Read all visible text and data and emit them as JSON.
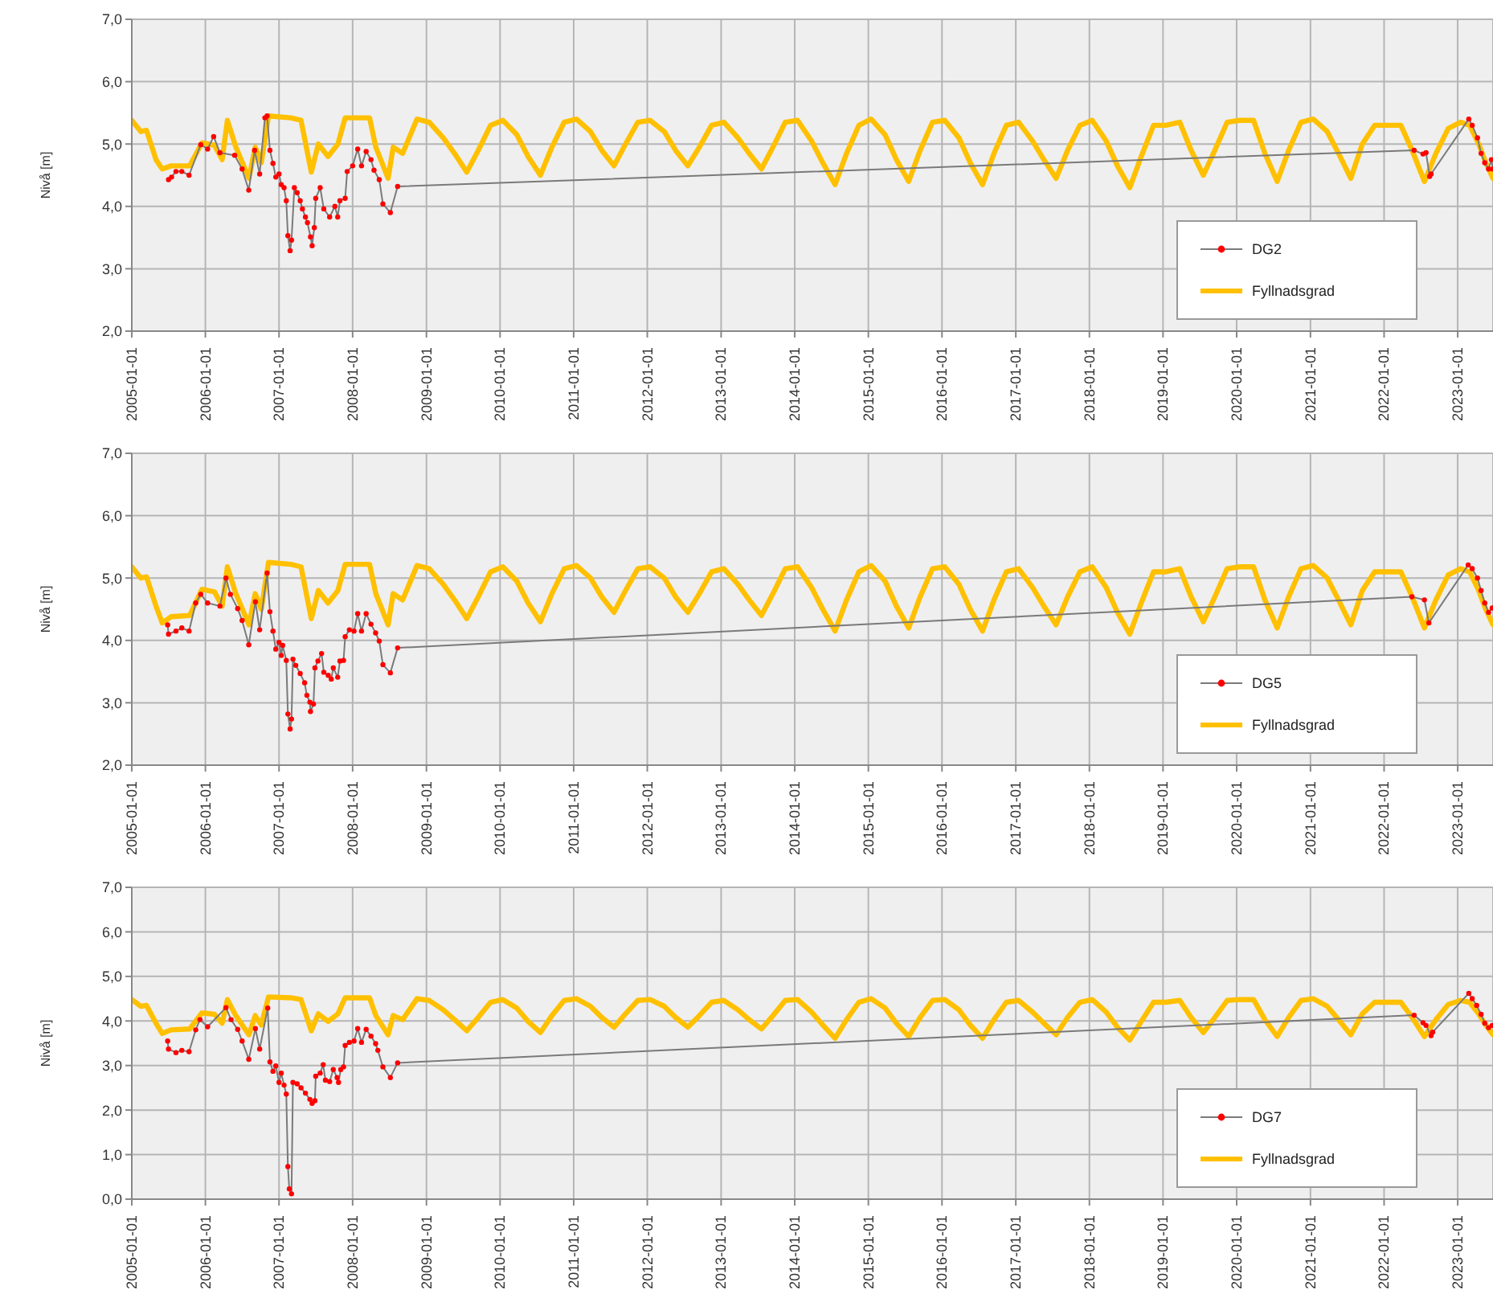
{
  "chart_data": [
    {
      "type": "line",
      "ylabel": "Nivå [m]",
      "xlim": [
        "2005-01-01",
        "2023-06-25"
      ],
      "ylim": [
        2,
        7
      ],
      "yticks": [
        {
          "value": 2,
          "label": "2,0"
        },
        {
          "value": 3,
          "label": "3,0"
        },
        {
          "value": 4,
          "label": "4,0"
        },
        {
          "value": 5,
          "label": "5,0"
        },
        {
          "value": 6,
          "label": "6,0"
        },
        {
          "value": 7,
          "label": "7,0"
        }
      ],
      "xticks": [
        {
          "value": "2005-01-01",
          "label": "2005-01-01"
        },
        {
          "value": "2006-01-01",
          "label": "2006-01-01"
        },
        {
          "value": "2007-01-01",
          "label": "2007-01-01"
        },
        {
          "value": "2008-01-01",
          "label": "2008-01-01"
        },
        {
          "value": "2009-01-01",
          "label": "2009-01-01"
        },
        {
          "value": "2010-01-01",
          "label": "2010-01-01"
        },
        {
          "value": "2011-01-01",
          "label": "2011-01-01"
        },
        {
          "value": "2012-01-01",
          "label": "2012-01-01"
        },
        {
          "value": "2013-01-01",
          "label": "2013-01-01"
        },
        {
          "value": "2014-01-01",
          "label": "2014-01-01"
        },
        {
          "value": "2015-01-01",
          "label": "2015-01-01"
        },
        {
          "value": "2016-01-01",
          "label": "2016-01-01"
        },
        {
          "value": "2017-01-01",
          "label": "2017-01-01"
        },
        {
          "value": "2018-01-01",
          "label": "2018-01-01"
        },
        {
          "value": "2019-01-01",
          "label": "2019-01-01"
        },
        {
          "value": "2020-01-01",
          "label": "2020-01-01"
        },
        {
          "value": "2021-01-01",
          "label": "2021-01-01"
        },
        {
          "value": "2022-01-01",
          "label": "2022-01-01"
        },
        {
          "value": "2023-01-01",
          "label": "2023-01-01"
        }
      ],
      "grid": true,
      "legend": "bottom right",
      "series": [
        {
          "name": "DG2",
          "color": "#ff0000",
          "marker": "circle",
          "x": [
            "2005-07-02",
            "2005-07-17",
            "2005-08-08",
            "2005-09-06",
            "2005-10-12",
            "2005-12-09",
            "2006-01-12",
            "2006-02-11",
            "2006-03-14",
            "2006-05-26",
            "2006-07-02",
            "2006-08-04",
            "2006-09-02",
            "2006-09-27",
            "2006-10-23",
            "2006-11-03",
            "2006-11-17",
            "2006-12-02",
            "2006-12-16",
            "2007-01-01",
            "2007-01-12",
            "2007-01-26",
            "2007-02-06",
            "2007-02-14",
            "2007-02-25",
            "2007-03-04",
            "2007-03-18",
            "2007-04-01",
            "2007-04-16",
            "2007-04-27",
            "2007-05-12",
            "2007-05-22",
            "2007-06-06",
            "2007-06-14",
            "2007-06-25",
            "2007-07-02",
            "2007-07-24",
            "2007-08-11",
            "2007-09-09",
            "2007-10-05",
            "2007-10-19",
            "2007-10-30",
            "2007-11-25",
            "2007-12-05",
            "2008-01-01",
            "2008-01-26",
            "2008-02-14",
            "2008-03-08",
            "2008-04-01",
            "2008-04-16",
            "2008-05-12",
            "2008-05-30",
            "2008-07-06",
            "2008-08-11",
            "2022-05-30",
            "2022-07-13",
            "2022-07-28",
            "2022-08-15",
            "2022-08-22",
            "2023-02-25",
            "2023-03-14",
            "2023-04-09",
            "2023-04-27",
            "2023-05-15",
            "2023-06-03",
            "2023-06-17",
            "2023-06-24"
          ],
          "values": [
            4.43,
            4.47,
            4.56,
            4.56,
            4.5,
            4.99,
            4.92,
            5.12,
            4.86,
            4.82,
            4.6,
            4.26,
            4.9,
            4.52,
            5.42,
            5.45,
            4.9,
            4.69,
            4.47,
            4.52,
            4.35,
            4.3,
            4.09,
            3.53,
            3.29,
            3.46,
            4.3,
            4.22,
            4.09,
            3.96,
            3.83,
            3.74,
            3.51,
            3.37,
            3.66,
            4.13,
            4.3,
            3.96,
            3.83,
            4.0,
            3.83,
            4.09,
            4.13,
            4.56,
            4.65,
            4.92,
            4.65,
            4.88,
            4.75,
            4.58,
            4.43,
            4.04,
            3.9,
            4.32,
            4.9,
            4.84,
            4.86,
            4.48,
            4.52,
            5.4,
            5.3,
            5.1,
            4.85,
            4.7,
            4.6,
            4.75,
            4.6
          ]
        },
        {
          "name": "Fyllnadsgrad",
          "color": "#ffc000",
          "marker": "none",
          "x": [
            "2005-01-01",
            "2005-02-15",
            "2005-03-15",
            "2005-05-01",
            "2005-06-01",
            "2005-07-15",
            "2005-10-15",
            "2005-12-15",
            "2006-02-15",
            "2006-03-25",
            "2006-04-20",
            "2006-06-01",
            "2006-08-05",
            "2006-09-05",
            "2006-10-05",
            "2006-11-10",
            "2007-03-01",
            "2007-04-20",
            "2007-06-10",
            "2007-07-15",
            "2007-09-01",
            "2007-10-20",
            "2007-11-25",
            "2008-03-25",
            "2008-04-25",
            "2008-06-25",
            "2008-07-20",
            "2008-09-05",
            "2008-11-15",
            "2009-01-15",
            "2009-03-25",
            "2009-05-20",
            "2009-07-20",
            "2009-09-15",
            "2009-11-15",
            "2010-01-15",
            "2010-03-25",
            "2010-05-20",
            "2010-07-20",
            "2010-09-15",
            "2010-11-15",
            "2011-01-15",
            "2011-03-25",
            "2011-05-20",
            "2011-07-20",
            "2011-09-15",
            "2011-11-15",
            "2012-01-15",
            "2012-03-25",
            "2012-05-20",
            "2012-07-20",
            "2012-09-15",
            "2012-11-15",
            "2013-01-15",
            "2013-03-25",
            "2013-05-20",
            "2013-07-20",
            "2013-09-15",
            "2013-11-15",
            "2014-01-15",
            "2014-03-25",
            "2014-05-20",
            "2014-07-20",
            "2014-09-15",
            "2014-11-15",
            "2015-01-15",
            "2015-03-25",
            "2015-05-20",
            "2015-07-20",
            "2015-09-15",
            "2015-11-15",
            "2016-01-15",
            "2016-03-25",
            "2016-05-20",
            "2016-07-20",
            "2016-09-15",
            "2016-11-15",
            "2017-01-15",
            "2017-03-25",
            "2017-05-20",
            "2017-07-20",
            "2017-09-15",
            "2017-11-15",
            "2018-01-15",
            "2018-03-25",
            "2018-05-20",
            "2018-07-20",
            "2018-09-15",
            "2018-11-15",
            "2019-01-15",
            "2019-03-25",
            "2019-05-20",
            "2019-07-20",
            "2019-09-15",
            "2019-11-15",
            "2020-01-15",
            "2020-03-25",
            "2020-05-20",
            "2020-07-20",
            "2020-09-15",
            "2020-11-15",
            "2021-01-15",
            "2021-03-25",
            "2021-05-20",
            "2021-07-20",
            "2021-09-15",
            "2021-11-15",
            "2022-01-15",
            "2022-03-25",
            "2022-05-20",
            "2022-07-20",
            "2022-09-15",
            "2022-11-15",
            "2023-01-15",
            "2023-03-01",
            "2023-04-15",
            "2023-05-20",
            "2023-06-25"
          ],
          "values": [
            5.38,
            5.2,
            5.22,
            4.75,
            4.6,
            4.65,
            4.65,
            5.02,
            4.98,
            4.75,
            5.38,
            4.95,
            4.45,
            4.95,
            4.7,
            5.45,
            5.42,
            5.38,
            4.55,
            5.0,
            4.8,
            5.0,
            5.42,
            5.42,
            4.95,
            4.45,
            4.95,
            4.85,
            5.4,
            5.35,
            5.1,
            4.85,
            4.55,
            4.9,
            5.3,
            5.38,
            5.15,
            4.8,
            4.5,
            4.95,
            5.35,
            5.4,
            5.2,
            4.9,
            4.65,
            5.0,
            5.35,
            5.38,
            5.2,
            4.9,
            4.65,
            4.95,
            5.3,
            5.35,
            5.1,
            4.85,
            4.6,
            4.95,
            5.35,
            5.38,
            5.05,
            4.7,
            4.35,
            4.85,
            5.3,
            5.4,
            5.15,
            4.75,
            4.4,
            4.9,
            5.35,
            5.38,
            5.1,
            4.7,
            4.35,
            4.85,
            5.3,
            5.35,
            5.05,
            4.75,
            4.45,
            4.9,
            5.3,
            5.38,
            5.05,
            4.65,
            4.3,
            4.8,
            5.3,
            5.3,
            5.35,
            4.9,
            4.5,
            4.9,
            5.35,
            5.38,
            5.38,
            4.85,
            4.4,
            4.9,
            5.35,
            5.4,
            5.2,
            4.85,
            4.45,
            5.0,
            5.3,
            5.3,
            5.3,
            4.9,
            4.4,
            4.85,
            5.25,
            5.35,
            5.3,
            5.0,
            4.7,
            4.45
          ]
        }
      ]
    },
    {
      "type": "line",
      "ylabel": "Nivå [m]",
      "xlim": [
        "2005-01-01",
        "2023-06-25"
      ],
      "ylim": [
        2,
        7
      ],
      "yticks": [
        {
          "value": 2,
          "label": "2,0"
        },
        {
          "value": 3,
          "label": "3,0"
        },
        {
          "value": 4,
          "label": "4,0"
        },
        {
          "value": 5,
          "label": "5,0"
        },
        {
          "value": 6,
          "label": "6,0"
        },
        {
          "value": 7,
          "label": "7,0"
        }
      ],
      "xticks": [
        {
          "value": "2005-01-01",
          "label": "2005-01-01"
        },
        {
          "value": "2006-01-01",
          "label": "2006-01-01"
        },
        {
          "value": "2007-01-01",
          "label": "2007-01-01"
        },
        {
          "value": "2008-01-01",
          "label": "2008-01-01"
        },
        {
          "value": "2009-01-01",
          "label": "2009-01-01"
        },
        {
          "value": "2010-01-01",
          "label": "2010-01-01"
        },
        {
          "value": "2011-01-01",
          "label": "2011-01-01"
        },
        {
          "value": "2012-01-01",
          "label": "2012-01-01"
        },
        {
          "value": "2013-01-01",
          "label": "2013-01-01"
        },
        {
          "value": "2014-01-01",
          "label": "2014-01-01"
        },
        {
          "value": "2015-01-01",
          "label": "2015-01-01"
        },
        {
          "value": "2016-01-01",
          "label": "2016-01-01"
        },
        {
          "value": "2017-01-01",
          "label": "2017-01-01"
        },
        {
          "value": "2018-01-01",
          "label": "2018-01-01"
        },
        {
          "value": "2019-01-01",
          "label": "2019-01-01"
        },
        {
          "value": "2020-01-01",
          "label": "2020-01-01"
        },
        {
          "value": "2021-01-01",
          "label": "2021-01-01"
        },
        {
          "value": "2022-01-01",
          "label": "2022-01-01"
        },
        {
          "value": "2023-01-01",
          "label": "2023-01-01"
        }
      ],
      "grid": true,
      "legend": "bottom right",
      "series": [
        {
          "name": "DG5",
          "color": "#ff0000",
          "marker": "circle",
          "x": [
            "2005-06-28",
            "2005-07-02",
            "2005-08-08",
            "2005-09-06",
            "2005-10-12",
            "2005-11-14",
            "2005-12-09",
            "2006-01-12",
            "2006-03-14",
            "2006-04-13",
            "2006-05-05",
            "2006-06-10",
            "2006-07-02",
            "2006-08-04",
            "2006-09-06",
            "2006-09-27",
            "2006-11-03",
            "2006-11-17",
            "2006-12-02",
            "2006-12-16",
            "2007-01-01",
            "2007-01-12",
            "2007-01-19",
            "2007-02-06",
            "2007-02-14",
            "2007-02-25",
            "2007-03-04",
            "2007-03-11",
            "2007-03-25",
            "2007-04-16",
            "2007-05-08",
            "2007-05-19",
            "2007-06-03",
            "2007-06-06",
            "2007-06-21",
            "2007-06-28",
            "2007-07-13",
            "2007-07-31",
            "2007-08-11",
            "2007-09-02",
            "2007-09-17",
            "2007-09-27",
            "2007-10-19",
            "2007-10-30",
            "2007-11-17",
            "2007-11-25",
            "2007-12-16",
            "2008-01-08",
            "2008-01-26",
            "2008-02-14",
            "2008-03-08",
            "2008-04-01",
            "2008-04-24",
            "2008-05-12",
            "2008-05-30",
            "2008-07-06",
            "2008-08-11",
            "2022-05-19",
            "2022-07-20",
            "2022-08-11",
            "2023-02-22",
            "2023-03-14",
            "2023-04-09",
            "2023-04-27",
            "2023-05-15",
            "2023-06-03",
            "2023-06-21"
          ],
          "values": [
            4.25,
            4.1,
            4.15,
            4.2,
            4.15,
            4.6,
            4.74,
            4.6,
            4.55,
            5.0,
            4.74,
            4.51,
            4.32,
            3.93,
            4.62,
            4.17,
            5.08,
            4.46,
            4.15,
            3.86,
            3.97,
            3.76,
            3.92,
            3.68,
            2.82,
            2.58,
            2.74,
            3.7,
            3.6,
            3.47,
            3.32,
            3.12,
            3.01,
            2.86,
            2.98,
            3.56,
            3.67,
            3.79,
            3.49,
            3.44,
            3.38,
            3.56,
            3.41,
            3.67,
            3.68,
            4.06,
            4.17,
            4.15,
            4.43,
            4.15,
            4.43,
            4.26,
            4.12,
            3.99,
            3.61,
            3.48,
            3.88,
            4.7,
            4.65,
            4.28,
            5.21,
            5.15,
            5.0,
            4.8,
            4.6,
            4.45,
            4.52
          ]
        },
        {
          "name": "Fyllnadsgrad",
          "color": "#ffc000",
          "marker": "none",
          "x": [
            "2005-01-01",
            "2005-02-15",
            "2005-03-15",
            "2005-05-01",
            "2005-06-01",
            "2005-07-15",
            "2005-10-15",
            "2005-12-15",
            "2006-02-15",
            "2006-03-25",
            "2006-04-20",
            "2006-06-01",
            "2006-08-05",
            "2006-09-05",
            "2006-10-05",
            "2006-11-10",
            "2007-03-01",
            "2007-04-20",
            "2007-06-10",
            "2007-07-15",
            "2007-09-01",
            "2007-10-20",
            "2007-11-25",
            "2008-03-25",
            "2008-04-25",
            "2008-06-25",
            "2008-07-20",
            "2008-09-05",
            "2008-11-15",
            "2009-01-15",
            "2009-03-25",
            "2009-05-20",
            "2009-07-20",
            "2009-09-15",
            "2009-11-15",
            "2010-01-15",
            "2010-03-25",
            "2010-05-20",
            "2010-07-20",
            "2010-09-15",
            "2010-11-15",
            "2011-01-15",
            "2011-03-25",
            "2011-05-20",
            "2011-07-20",
            "2011-09-15",
            "2011-11-15",
            "2012-01-15",
            "2012-03-25",
            "2012-05-20",
            "2012-07-20",
            "2012-09-15",
            "2012-11-15",
            "2013-01-15",
            "2013-03-25",
            "2013-05-20",
            "2013-07-20",
            "2013-09-15",
            "2013-11-15",
            "2014-01-15",
            "2014-03-25",
            "2014-05-20",
            "2014-07-20",
            "2014-09-15",
            "2014-11-15",
            "2015-01-15",
            "2015-03-25",
            "2015-05-20",
            "2015-07-20",
            "2015-09-15",
            "2015-11-15",
            "2016-01-15",
            "2016-03-25",
            "2016-05-20",
            "2016-07-20",
            "2016-09-15",
            "2016-11-15",
            "2017-01-15",
            "2017-03-25",
            "2017-05-20",
            "2017-07-20",
            "2017-09-15",
            "2017-11-15",
            "2018-01-15",
            "2018-03-25",
            "2018-05-20",
            "2018-07-20",
            "2018-09-15",
            "2018-11-15",
            "2019-01-15",
            "2019-03-25",
            "2019-05-20",
            "2019-07-20",
            "2019-09-15",
            "2019-11-15",
            "2020-01-15",
            "2020-03-25",
            "2020-05-20",
            "2020-07-20",
            "2020-09-15",
            "2020-11-15",
            "2021-01-15",
            "2021-03-25",
            "2021-05-20",
            "2021-07-20",
            "2021-09-15",
            "2021-11-15",
            "2022-01-15",
            "2022-03-25",
            "2022-05-20",
            "2022-07-20",
            "2022-09-15",
            "2022-11-15",
            "2023-01-15",
            "2023-03-01",
            "2023-04-15",
            "2023-05-20",
            "2023-06-25"
          ],
          "values": [
            5.18,
            5.0,
            5.02,
            4.55,
            4.28,
            4.38,
            4.4,
            4.82,
            4.78,
            4.55,
            5.18,
            4.75,
            4.25,
            4.75,
            4.5,
            5.25,
            5.22,
            5.18,
            4.35,
            4.8,
            4.6,
            4.8,
            5.22,
            5.22,
            4.75,
            4.25,
            4.75,
            4.65,
            5.2,
            5.15,
            4.9,
            4.65,
            4.35,
            4.7,
            5.1,
            5.18,
            4.95,
            4.6,
            4.3,
            4.75,
            5.15,
            5.2,
            5.0,
            4.7,
            4.45,
            4.8,
            5.15,
            5.18,
            5.0,
            4.7,
            4.45,
            4.75,
            5.1,
            5.15,
            4.9,
            4.65,
            4.4,
            4.75,
            5.15,
            5.18,
            4.85,
            4.5,
            4.15,
            4.65,
            5.1,
            5.2,
            4.95,
            4.55,
            4.2,
            4.7,
            5.15,
            5.18,
            4.9,
            4.5,
            4.15,
            4.65,
            5.1,
            5.15,
            4.85,
            4.55,
            4.25,
            4.7,
            5.1,
            5.18,
            4.85,
            4.45,
            4.1,
            4.6,
            5.1,
            5.1,
            5.15,
            4.7,
            4.3,
            4.7,
            5.15,
            5.18,
            5.18,
            4.65,
            4.2,
            4.7,
            5.15,
            5.2,
            5.0,
            4.65,
            4.25,
            4.8,
            5.1,
            5.1,
            5.1,
            4.7,
            4.2,
            4.65,
            5.05,
            5.15,
            5.1,
            4.8,
            4.5,
            4.25
          ]
        }
      ]
    },
    {
      "type": "line",
      "ylabel": "Nivå [m]",
      "xlim": [
        "2005-01-01",
        "2023-06-25"
      ],
      "ylim": [
        0,
        7
      ],
      "yticks": [
        {
          "value": 0,
          "label": "0,0"
        },
        {
          "value": 1,
          "label": "1,0"
        },
        {
          "value": 2,
          "label": "2,0"
        },
        {
          "value": 3,
          "label": "3,0"
        },
        {
          "value": 4,
          "label": "4,0"
        },
        {
          "value": 5,
          "label": "5,0"
        },
        {
          "value": 6,
          "label": "6,0"
        },
        {
          "value": 7,
          "label": "7,0"
        }
      ],
      "xticks": [
        {
          "value": "2005-01-01",
          "label": "2005-01-01"
        },
        {
          "value": "2006-01-01",
          "label": "2006-01-01"
        },
        {
          "value": "2007-01-01",
          "label": "2007-01-01"
        },
        {
          "value": "2008-01-01",
          "label": "2008-01-01"
        },
        {
          "value": "2009-01-01",
          "label": "2009-01-01"
        },
        {
          "value": "2010-01-01",
          "label": "2010-01-01"
        },
        {
          "value": "2011-01-01",
          "label": "2011-01-01"
        },
        {
          "value": "2012-01-01",
          "label": "2012-01-01"
        },
        {
          "value": "2013-01-01",
          "label": "2013-01-01"
        },
        {
          "value": "2014-01-01",
          "label": "2014-01-01"
        },
        {
          "value": "2015-01-01",
          "label": "2015-01-01"
        },
        {
          "value": "2016-01-01",
          "label": "2016-01-01"
        },
        {
          "value": "2017-01-01",
          "label": "2017-01-01"
        },
        {
          "value": "2018-01-01",
          "label": "2018-01-01"
        },
        {
          "value": "2019-01-01",
          "label": "2019-01-01"
        },
        {
          "value": "2020-01-01",
          "label": "2020-01-01"
        },
        {
          "value": "2021-01-01",
          "label": "2021-01-01"
        },
        {
          "value": "2022-01-01",
          "label": "2022-01-01"
        },
        {
          "value": "2023-01-01",
          "label": "2023-01-01"
        }
      ],
      "grid": true,
      "legend": "bottom right",
      "series": [
        {
          "name": "DG7",
          "color": "#ff0000",
          "marker": "circle",
          "x": [
            "2005-06-28",
            "2005-07-02",
            "2005-08-08",
            "2005-09-06",
            "2005-10-12",
            "2005-11-14",
            "2005-12-05",
            "2006-01-12",
            "2006-04-13",
            "2006-05-08",
            "2006-06-10",
            "2006-07-02",
            "2006-08-04",
            "2006-09-06",
            "2006-09-27",
            "2006-11-06",
            "2006-11-17",
            "2006-12-02",
            "2006-12-16",
            "2007-01-01",
            "2007-01-12",
            "2007-01-26",
            "2007-02-06",
            "2007-02-14",
            "2007-02-21",
            "2007-03-04",
            "2007-03-11",
            "2007-04-01",
            "2007-04-20",
            "2007-05-12",
            "2007-06-03",
            "2007-06-14",
            "2007-06-28",
            "2007-07-02",
            "2007-07-24",
            "2007-08-08",
            "2007-08-19",
            "2007-09-09",
            "2007-09-27",
            "2007-10-16",
            "2007-10-23",
            "2007-11-03",
            "2007-11-17",
            "2007-11-25",
            "2007-12-16",
            "2008-01-08",
            "2008-01-26",
            "2008-02-14",
            "2008-03-08",
            "2008-04-01",
            "2008-04-24",
            "2008-05-05",
            "2008-05-30",
            "2008-07-06",
            "2008-08-11",
            "2022-05-30",
            "2022-07-13",
            "2022-07-28",
            "2022-08-22",
            "2022-08-30",
            "2023-02-25",
            "2023-03-14",
            "2023-04-05",
            "2023-04-27",
            "2023-05-15",
            "2023-06-03",
            "2023-06-21"
          ],
          "values": [
            3.55,
            3.37,
            3.29,
            3.34,
            3.31,
            3.8,
            4.03,
            3.87,
            4.3,
            4.03,
            3.81,
            3.55,
            3.14,
            3.83,
            3.37,
            4.29,
            3.08,
            2.87,
            2.99,
            2.62,
            2.83,
            2.56,
            2.36,
            0.73,
            0.23,
            0.12,
            2.62,
            2.59,
            2.5,
            2.38,
            2.24,
            2.15,
            2.21,
            2.76,
            2.83,
            3.02,
            2.67,
            2.64,
            2.91,
            2.73,
            2.62,
            2.91,
            2.97,
            3.45,
            3.52,
            3.55,
            3.83,
            3.52,
            3.81,
            3.66,
            3.49,
            3.34,
            2.97,
            2.73,
            3.06,
            4.13,
            3.96,
            3.9,
            3.67,
            3.75,
            4.62,
            4.5,
            4.35,
            4.15,
            3.95,
            3.85,
            3.9
          ]
        },
        {
          "name": "Fyllnadsgrad",
          "color": "#ffc000",
          "marker": "none",
          "x": [
            "2005-01-01",
            "2005-02-15",
            "2005-03-15",
            "2005-05-01",
            "2005-06-01",
            "2005-07-15",
            "2005-10-15",
            "2005-12-15",
            "2006-02-15",
            "2006-03-25",
            "2006-04-20",
            "2006-06-01",
            "2006-08-05",
            "2006-09-05",
            "2006-10-05",
            "2006-11-10",
            "2007-03-01",
            "2007-04-20",
            "2007-06-10",
            "2007-07-15",
            "2007-09-01",
            "2007-10-20",
            "2007-11-25",
            "2008-03-25",
            "2008-04-25",
            "2008-06-25",
            "2008-07-20",
            "2008-09-05",
            "2008-11-15",
            "2009-01-15",
            "2009-03-25",
            "2009-05-20",
            "2009-07-20",
            "2009-09-15",
            "2009-11-15",
            "2010-01-15",
            "2010-03-25",
            "2010-05-20",
            "2010-07-20",
            "2010-09-15",
            "2010-11-15",
            "2011-01-15",
            "2011-03-25",
            "2011-05-20",
            "2011-07-20",
            "2011-09-15",
            "2011-11-15",
            "2012-01-15",
            "2012-03-25",
            "2012-05-20",
            "2012-07-20",
            "2012-09-15",
            "2012-11-15",
            "2013-01-15",
            "2013-03-25",
            "2013-05-20",
            "2013-07-20",
            "2013-09-15",
            "2013-11-15",
            "2014-01-15",
            "2014-03-25",
            "2014-05-20",
            "2014-07-20",
            "2014-09-15",
            "2014-11-15",
            "2015-01-15",
            "2015-03-25",
            "2015-05-20",
            "2015-07-20",
            "2015-09-15",
            "2015-11-15",
            "2016-01-15",
            "2016-03-25",
            "2016-05-20",
            "2016-07-20",
            "2016-09-15",
            "2016-11-15",
            "2017-01-15",
            "2017-03-25",
            "2017-05-20",
            "2017-07-20",
            "2017-09-15",
            "2017-11-15",
            "2018-01-15",
            "2018-03-25",
            "2018-05-20",
            "2018-07-20",
            "2018-09-15",
            "2018-11-15",
            "2019-01-15",
            "2019-03-25",
            "2019-05-20",
            "2019-07-20",
            "2019-09-15",
            "2019-11-15",
            "2020-01-15",
            "2020-03-25",
            "2020-05-20",
            "2020-07-20",
            "2020-09-15",
            "2020-11-15",
            "2021-01-15",
            "2021-03-25",
            "2021-05-20",
            "2021-07-20",
            "2021-09-15",
            "2021-11-15",
            "2022-01-15",
            "2022-03-25",
            "2022-05-20",
            "2022-07-20",
            "2022-09-15",
            "2022-11-15",
            "2023-01-15",
            "2023-03-01",
            "2023-04-15",
            "2023-05-20",
            "2023-06-25"
          ],
          "values": [
            4.48,
            4.33,
            4.35,
            3.95,
            3.72,
            3.8,
            3.82,
            4.18,
            4.15,
            3.95,
            4.48,
            4.12,
            3.69,
            4.12,
            3.91,
            4.54,
            4.52,
            4.48,
            3.78,
            4.16,
            3.99,
            4.16,
            4.52,
            4.52,
            4.12,
            3.69,
            4.12,
            4.03,
            4.5,
            4.46,
            4.25,
            4.03,
            3.78,
            4.08,
            4.42,
            4.48,
            4.29,
            3.99,
            3.74,
            4.12,
            4.46,
            4.5,
            4.33,
            4.08,
            3.86,
            4.16,
            4.46,
            4.48,
            4.33,
            4.08,
            3.86,
            4.12,
            4.42,
            4.46,
            4.25,
            4.03,
            3.82,
            4.12,
            4.46,
            4.48,
            4.2,
            3.91,
            3.61,
            4.03,
            4.42,
            4.5,
            4.29,
            3.95,
            3.65,
            4.08,
            4.46,
            4.48,
            4.25,
            3.91,
            3.61,
            4.03,
            4.42,
            4.46,
            4.2,
            3.95,
            3.69,
            4.08,
            4.42,
            4.48,
            4.2,
            3.86,
            3.57,
            3.99,
            4.42,
            4.42,
            4.46,
            4.08,
            3.74,
            4.08,
            4.46,
            4.48,
            4.48,
            4.03,
            3.65,
            4.08,
            4.46,
            4.5,
            4.33,
            4.03,
            3.69,
            4.16,
            4.42,
            4.42,
            4.42,
            4.08,
            3.65,
            4.03,
            4.37,
            4.46,
            4.42,
            4.16,
            3.91,
            3.69
          ]
        }
      ]
    }
  ]
}
